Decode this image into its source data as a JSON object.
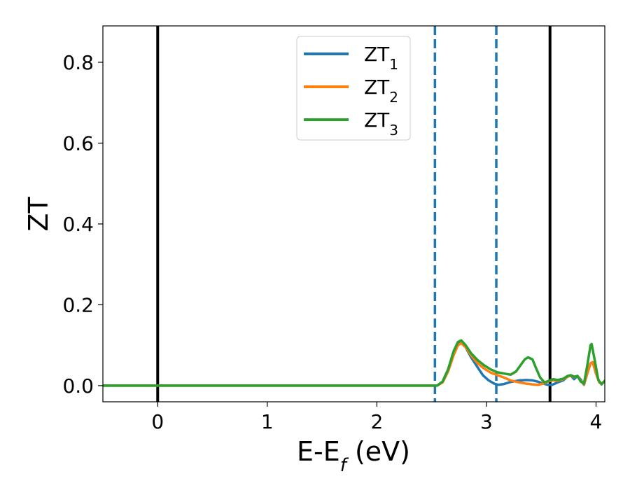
{
  "chart_data": {
    "type": "line",
    "xlabel": {
      "main": "E-E",
      "sub": "f",
      "tail": " (eV)"
    },
    "ylabel": "ZT",
    "xlim": [
      -0.5,
      4.08
    ],
    "ylim": [
      -0.04,
      0.89
    ],
    "xticks": [
      {
        "value": 0,
        "label": "0"
      },
      {
        "value": 1,
        "label": "1"
      },
      {
        "value": 2,
        "label": "2"
      },
      {
        "value": 3,
        "label": "3"
      },
      {
        "value": 4,
        "label": "4"
      }
    ],
    "yticks": [
      {
        "value": 0.0,
        "label": "0.0"
      },
      {
        "value": 0.2,
        "label": "0.2"
      },
      {
        "value": 0.4,
        "label": "0.4"
      },
      {
        "value": 0.6,
        "label": "0.6"
      },
      {
        "value": 0.8,
        "label": "0.8"
      }
    ],
    "vlines": [
      {
        "x": 0.0,
        "color": "#000000",
        "style": "solid"
      },
      {
        "x": 3.58,
        "color": "#000000",
        "style": "solid"
      },
      {
        "x": 2.53,
        "color": "#1f77b4",
        "style": "dashed"
      },
      {
        "x": 3.09,
        "color": "#1f77b4",
        "style": "dashed"
      }
    ],
    "legend_position": "top-center",
    "series": [
      {
        "name": "ZT",
        "sub": "1",
        "color": "#1f77b4",
        "points": [
          [
            -0.5,
            0
          ],
          [
            2.55,
            0
          ],
          [
            2.6,
            0.01
          ],
          [
            2.65,
            0.04
          ],
          [
            2.7,
            0.08
          ],
          [
            2.74,
            0.105
          ],
          [
            2.77,
            0.108
          ],
          [
            2.81,
            0.095
          ],
          [
            2.86,
            0.07
          ],
          [
            2.92,
            0.045
          ],
          [
            2.97,
            0.025
          ],
          [
            3.02,
            0.013
          ],
          [
            3.07,
            0.005
          ],
          [
            3.11,
            0.002
          ],
          [
            3.16,
            0.004
          ],
          [
            3.22,
            0.009
          ],
          [
            3.3,
            0.013
          ],
          [
            3.36,
            0.014
          ],
          [
            3.42,
            0.013
          ],
          [
            3.48,
            0.009
          ],
          [
            3.52,
            0.005
          ],
          [
            3.56,
            0.002
          ],
          [
            3.6,
            0.002
          ],
          [
            3.65,
            0.008
          ],
          [
            3.7,
            0.013
          ],
          [
            3.74,
            0.022
          ],
          [
            3.77,
            0.025
          ],
          [
            3.8,
            0.016
          ],
          [
            3.83,
            0.024
          ],
          [
            3.86,
            0.015
          ],
          [
            3.89,
            0.002
          ],
          [
            3.92,
            0.03
          ],
          [
            3.95,
            0.055
          ],
          [
            3.97,
            0.058
          ],
          [
            4.0,
            0.03
          ],
          [
            4.03,
            0.008
          ],
          [
            4.05,
            0.005
          ],
          [
            4.08,
            0.01
          ]
        ]
      },
      {
        "name": "ZT",
        "sub": "2",
        "color": "#ff7f0e",
        "points": [
          [
            -0.5,
            0
          ],
          [
            2.55,
            0
          ],
          [
            2.6,
            0.008
          ],
          [
            2.65,
            0.035
          ],
          [
            2.7,
            0.075
          ],
          [
            2.74,
            0.1
          ],
          [
            2.77,
            0.105
          ],
          [
            2.81,
            0.095
          ],
          [
            2.86,
            0.075
          ],
          [
            2.92,
            0.055
          ],
          [
            2.98,
            0.042
          ],
          [
            3.04,
            0.032
          ],
          [
            3.1,
            0.026
          ],
          [
            3.16,
            0.02
          ],
          [
            3.22,
            0.013
          ],
          [
            3.3,
            0.008
          ],
          [
            3.36,
            0.005
          ],
          [
            3.42,
            0.003
          ],
          [
            3.47,
            0.002
          ],
          [
            3.52,
            0.005
          ],
          [
            3.56,
            0.01
          ],
          [
            3.6,
            0.013
          ],
          [
            3.65,
            0.012
          ],
          [
            3.7,
            0.016
          ],
          [
            3.74,
            0.022
          ],
          [
            3.77,
            0.025
          ],
          [
            3.8,
            0.021
          ],
          [
            3.83,
            0.024
          ],
          [
            3.86,
            0.012
          ],
          [
            3.89,
            0.003
          ],
          [
            3.92,
            0.03
          ],
          [
            3.95,
            0.055
          ],
          [
            3.97,
            0.058
          ],
          [
            4.0,
            0.03
          ],
          [
            4.03,
            0.008
          ],
          [
            4.05,
            0.005
          ],
          [
            4.08,
            0.012
          ]
        ]
      },
      {
        "name": "ZT",
        "sub": "3",
        "color": "#2ca02c",
        "points": [
          [
            -0.5,
            0
          ],
          [
            2.55,
            0
          ],
          [
            2.6,
            0.01
          ],
          [
            2.65,
            0.04
          ],
          [
            2.7,
            0.085
          ],
          [
            2.74,
            0.108
          ],
          [
            2.77,
            0.112
          ],
          [
            2.81,
            0.1
          ],
          [
            2.86,
            0.08
          ],
          [
            2.92,
            0.063
          ],
          [
            2.98,
            0.05
          ],
          [
            3.04,
            0.04
          ],
          [
            3.1,
            0.033
          ],
          [
            3.16,
            0.03
          ],
          [
            3.22,
            0.027
          ],
          [
            3.27,
            0.035
          ],
          [
            3.31,
            0.05
          ],
          [
            3.35,
            0.065
          ],
          [
            3.38,
            0.07
          ],
          [
            3.42,
            0.065
          ],
          [
            3.45,
            0.045
          ],
          [
            3.49,
            0.02
          ],
          [
            3.53,
            0.008
          ],
          [
            3.57,
            0.012
          ],
          [
            3.61,
            0.016
          ],
          [
            3.65,
            0.014
          ],
          [
            3.7,
            0.017
          ],
          [
            3.74,
            0.024
          ],
          [
            3.77,
            0.026
          ],
          [
            3.8,
            0.022
          ],
          [
            3.83,
            0.024
          ],
          [
            3.86,
            0.01
          ],
          [
            3.89,
            0.005
          ],
          [
            3.92,
            0.05
          ],
          [
            3.95,
            0.1
          ],
          [
            3.96,
            0.103
          ],
          [
            3.99,
            0.06
          ],
          [
            4.02,
            0.015
          ],
          [
            4.05,
            0.003
          ],
          [
            4.08,
            0.012
          ]
        ]
      }
    ]
  }
}
